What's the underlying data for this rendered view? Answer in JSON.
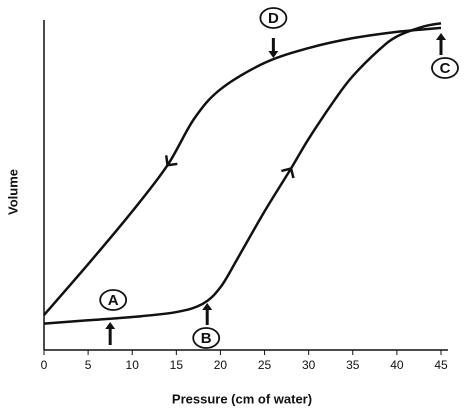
{
  "chart_data": {
    "type": "line",
    "x_label": "Pressure (cm of water)",
    "y_label": "Volume",
    "xlim": [
      0,
      45
    ],
    "ylim": [
      0,
      100
    ],
    "xticks": [
      0,
      5,
      10,
      15,
      20,
      25,
      30,
      35,
      40,
      45
    ],
    "series": [
      {
        "color": "#111111",
        "x": [
          0,
          5,
          10,
          15,
          18,
          20,
          22,
          25,
          28,
          30,
          33,
          35,
          38,
          40,
          43,
          45
        ],
        "values": [
          8,
          9,
          10,
          11.5,
          14,
          19,
          28,
          42,
          55,
          64,
          76,
          83,
          91,
          95,
          98,
          99
        ]
      },
      {
        "color": "#111111",
        "x": [
          0,
          5,
          10,
          14,
          17,
          20,
          25,
          30,
          35,
          40,
          45
        ],
        "values": [
          10.6,
          26,
          42,
          56,
          70,
          79,
          87,
          91.5,
          94.5,
          96.4,
          97.6
        ]
      }
    ],
    "annotations": [
      {
        "text": "A",
        "x": 7.5
      },
      {
        "text": "B",
        "x": 18.5
      },
      {
        "text": "C",
        "x": 45
      },
      {
        "text": "D",
        "x": 26
      }
    ]
  }
}
